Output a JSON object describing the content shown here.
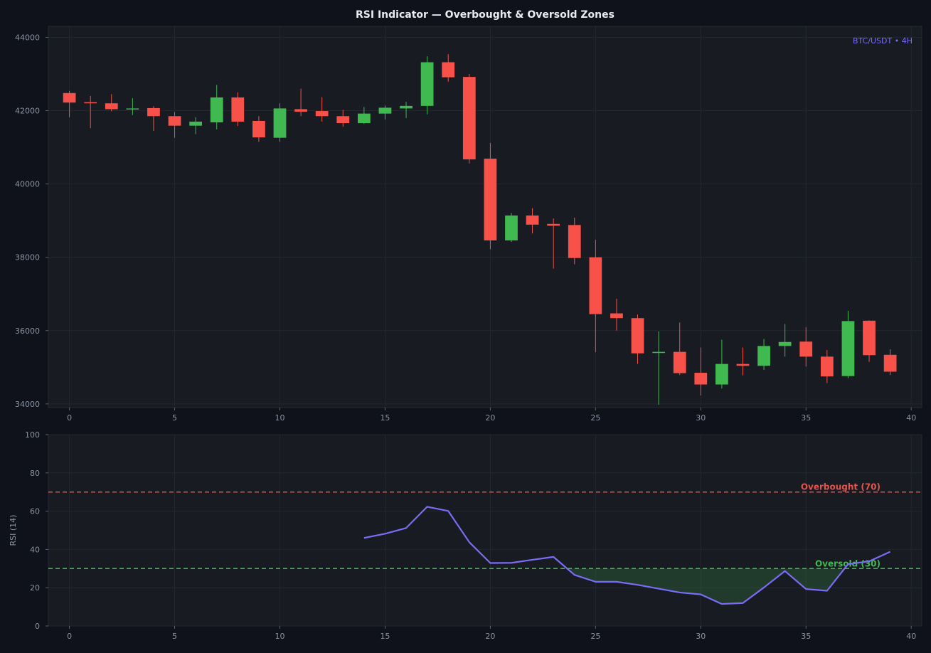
{
  "chart_data": [
    {
      "type": "candlestick",
      "title": "RSI Indicator — Overbought & Oversold Zones",
      "annotation": "BTC/USDT • 4H",
      "x": [
        0,
        1,
        2,
        3,
        4,
        5,
        6,
        7,
        8,
        9,
        10,
        11,
        12,
        13,
        14,
        15,
        16,
        17,
        18,
        19,
        20,
        21,
        22,
        23,
        24,
        25,
        26,
        27,
        28,
        29,
        30,
        31,
        32,
        33,
        34,
        35,
        36,
        37,
        38,
        39
      ],
      "ohlc": [
        {
          "o": 42480,
          "h": 42540,
          "l": 41820,
          "c": 42220
        },
        {
          "o": 42230,
          "h": 42400,
          "l": 41520,
          "c": 42200
        },
        {
          "o": 42200,
          "h": 42450,
          "l": 41980,
          "c": 42040
        },
        {
          "o": 42040,
          "h": 42340,
          "l": 41880,
          "c": 42060
        },
        {
          "o": 42070,
          "h": 42120,
          "l": 41450,
          "c": 41850
        },
        {
          "o": 41850,
          "h": 41960,
          "l": 41260,
          "c": 41590
        },
        {
          "o": 41590,
          "h": 41820,
          "l": 41360,
          "c": 41700
        },
        {
          "o": 41680,
          "h": 42700,
          "l": 41490,
          "c": 42360
        },
        {
          "o": 42360,
          "h": 42500,
          "l": 41580,
          "c": 41700
        },
        {
          "o": 41720,
          "h": 41850,
          "l": 41150,
          "c": 41270
        },
        {
          "o": 41260,
          "h": 42200,
          "l": 41150,
          "c": 42060
        },
        {
          "o": 42040,
          "h": 42600,
          "l": 41850,
          "c": 41970
        },
        {
          "o": 41990,
          "h": 42370,
          "l": 41700,
          "c": 41850
        },
        {
          "o": 41850,
          "h": 42020,
          "l": 41560,
          "c": 41660
        },
        {
          "o": 41660,
          "h": 42100,
          "l": 41640,
          "c": 41920
        },
        {
          "o": 41920,
          "h": 42140,
          "l": 41760,
          "c": 42080
        },
        {
          "o": 42060,
          "h": 42240,
          "l": 41800,
          "c": 42130
        },
        {
          "o": 42130,
          "h": 43480,
          "l": 41900,
          "c": 43320
        },
        {
          "o": 43320,
          "h": 43540,
          "l": 42790,
          "c": 42910
        },
        {
          "o": 42920,
          "h": 43000,
          "l": 40560,
          "c": 40670
        },
        {
          "o": 40690,
          "h": 41120,
          "l": 38220,
          "c": 38460
        },
        {
          "o": 38460,
          "h": 39210,
          "l": 38420,
          "c": 39140
        },
        {
          "o": 39140,
          "h": 39340,
          "l": 38650,
          "c": 38890
        },
        {
          "o": 38910,
          "h": 39060,
          "l": 37690,
          "c": 38860
        },
        {
          "o": 38880,
          "h": 39080,
          "l": 37810,
          "c": 37980
        },
        {
          "o": 38000,
          "h": 38480,
          "l": 35410,
          "c": 36450
        },
        {
          "o": 36470,
          "h": 36870,
          "l": 36000,
          "c": 36340
        },
        {
          "o": 36340,
          "h": 36440,
          "l": 35090,
          "c": 35380
        },
        {
          "o": 35390,
          "h": 35980,
          "l": 33980,
          "c": 35420
        },
        {
          "o": 35420,
          "h": 36220,
          "l": 34790,
          "c": 34840
        },
        {
          "o": 34850,
          "h": 35540,
          "l": 34230,
          "c": 34530
        },
        {
          "o": 34530,
          "h": 35750,
          "l": 34420,
          "c": 35090
        },
        {
          "o": 35090,
          "h": 35540,
          "l": 34780,
          "c": 35040
        },
        {
          "o": 35040,
          "h": 35770,
          "l": 34930,
          "c": 35580
        },
        {
          "o": 35580,
          "h": 36180,
          "l": 35290,
          "c": 35690
        },
        {
          "o": 35700,
          "h": 36090,
          "l": 35020,
          "c": 35290
        },
        {
          "o": 35290,
          "h": 35470,
          "l": 34570,
          "c": 34750
        },
        {
          "o": 34760,
          "h": 36540,
          "l": 34700,
          "c": 36260
        },
        {
          "o": 36270,
          "h": 36280,
          "l": 35150,
          "c": 35330
        },
        {
          "o": 35340,
          "h": 35490,
          "l": 34790,
          "c": 34880
        }
      ],
      "xlim": [
        -1,
        40.5
      ],
      "ylim": [
        33900,
        44300
      ],
      "xticks": [
        0,
        5,
        10,
        15,
        20,
        25,
        30,
        35,
        40
      ],
      "yticks": [
        34000,
        36000,
        38000,
        40000,
        42000,
        44000
      ],
      "grid": true,
      "colors": {
        "up": "#3fb950",
        "down": "#f85149",
        "annotation": "#7b6cf6"
      }
    },
    {
      "type": "line",
      "ylabel": "RSI (14)",
      "series": [
        {
          "x": [
            14,
            15,
            16,
            17,
            18,
            19,
            20,
            21,
            22,
            23,
            24,
            25,
            26,
            27,
            28,
            29,
            30,
            31,
            32,
            33,
            34,
            35,
            36,
            37,
            38,
            39
          ],
          "values": [
            46,
            48.2,
            51.2,
            62.3,
            60.1,
            43.8,
            32.9,
            33,
            34.6,
            36.1,
            26.7,
            23.1,
            23.1,
            21.5,
            19.5,
            17.5,
            16.5,
            11.5,
            12,
            20.1,
            28.7,
            19.3,
            18.4,
            32.3,
            33.8,
            38.8
          ],
          "color": "#7b6cf6"
        }
      ],
      "reference_lines": [
        {
          "y": 70,
          "label": "Overbought (70)",
          "color": "#e5534b"
        },
        {
          "y": 30,
          "label": "Oversold (30)",
          "color": "#3fb950"
        }
      ],
      "oversold_fill": {
        "below": 30,
        "color": "#3fb950"
      },
      "xlim": [
        -1,
        40.5
      ],
      "ylim": [
        0,
        100
      ],
      "xticks": [
        0,
        5,
        10,
        15,
        20,
        25,
        30,
        35,
        40
      ],
      "yticks": [
        0,
        20,
        40,
        60,
        80,
        100
      ],
      "grid": true
    }
  ],
  "colors": {
    "background": "#0f121a",
    "panel": "#181b22",
    "grid": "#232731",
    "axis_text": "#8b93a3",
    "title": "#e8ebf2"
  }
}
